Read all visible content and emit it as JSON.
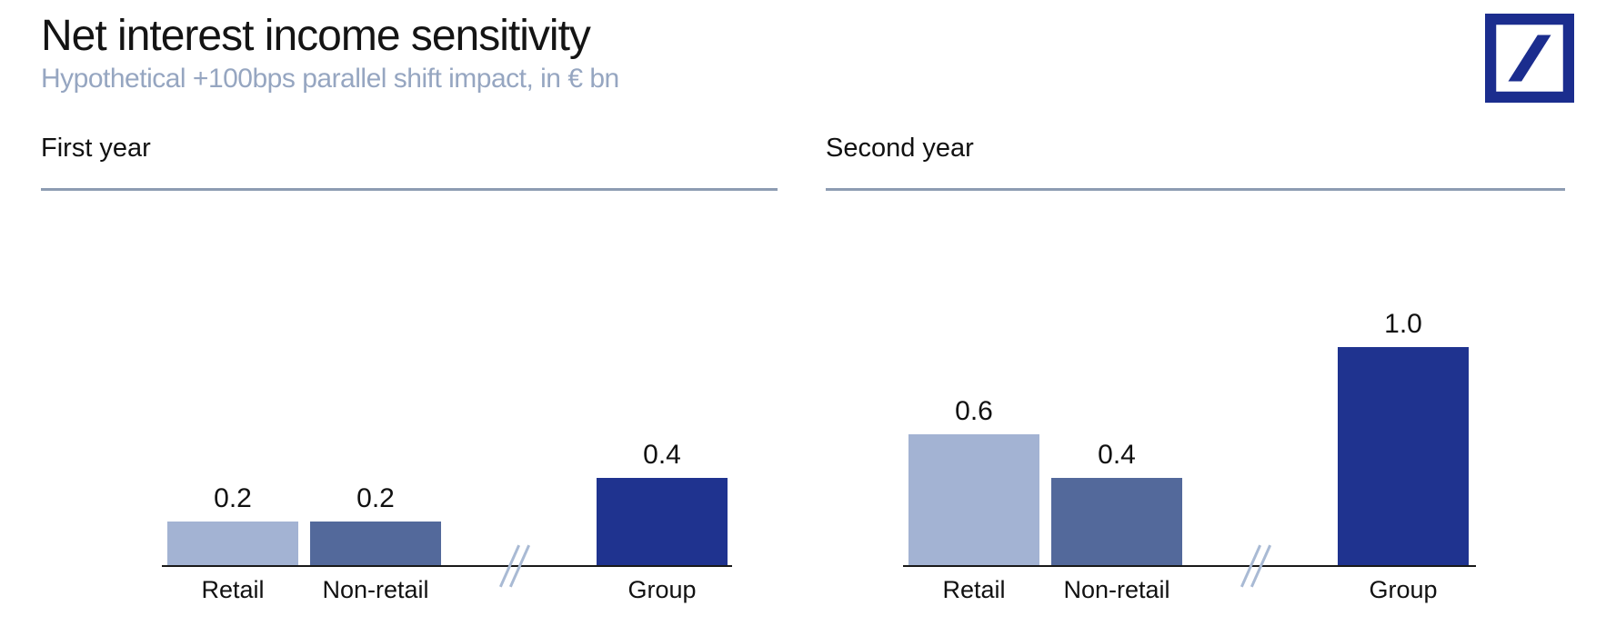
{
  "header": {
    "title": "Net interest income sensitivity",
    "subtitle": "Hypothetical +100bps parallel shift impact, in € bn"
  },
  "logo": {
    "label": "Deutsche Bank"
  },
  "colors": {
    "retail_bar": "#a3b3d3",
    "non_retail_bar": "#53699b",
    "group_bar": "#1f338f",
    "logo_blue": "#1b2d8e",
    "subtitle_text": "#96a6c1",
    "heading_rule": "#8d9cb2",
    "axis_line": "#191919",
    "axis_break_mark": "#a9bad4"
  },
  "chart_data": [
    {
      "type": "bar",
      "title": "First year",
      "categories": [
        "Retail",
        "Non-retail",
        "Group"
      ],
      "values": [
        0.2,
        0.2,
        0.4
      ],
      "value_labels": [
        "0.2",
        "0.2",
        "0.4"
      ],
      "series_colors": [
        "#a3b3d3",
        "#53699b",
        "#1f338f"
      ],
      "axis_break_between": [
        "Non-retail",
        "Group"
      ],
      "ylim": [
        0,
        1.1
      ],
      "grid": false,
      "legend": "none",
      "ylabel": "",
      "xlabel": ""
    },
    {
      "type": "bar",
      "title": "Second year",
      "categories": [
        "Retail",
        "Non-retail",
        "Group"
      ],
      "values": [
        0.6,
        0.4,
        1.0
      ],
      "value_labels": [
        "0.6",
        "0.4",
        "1.0"
      ],
      "series_colors": [
        "#a3b3d3",
        "#53699b",
        "#1f338f"
      ],
      "axis_break_between": [
        "Non-retail",
        "Group"
      ],
      "ylim": [
        0,
        1.1
      ],
      "grid": false,
      "legend": "none",
      "ylabel": "",
      "xlabel": ""
    }
  ]
}
